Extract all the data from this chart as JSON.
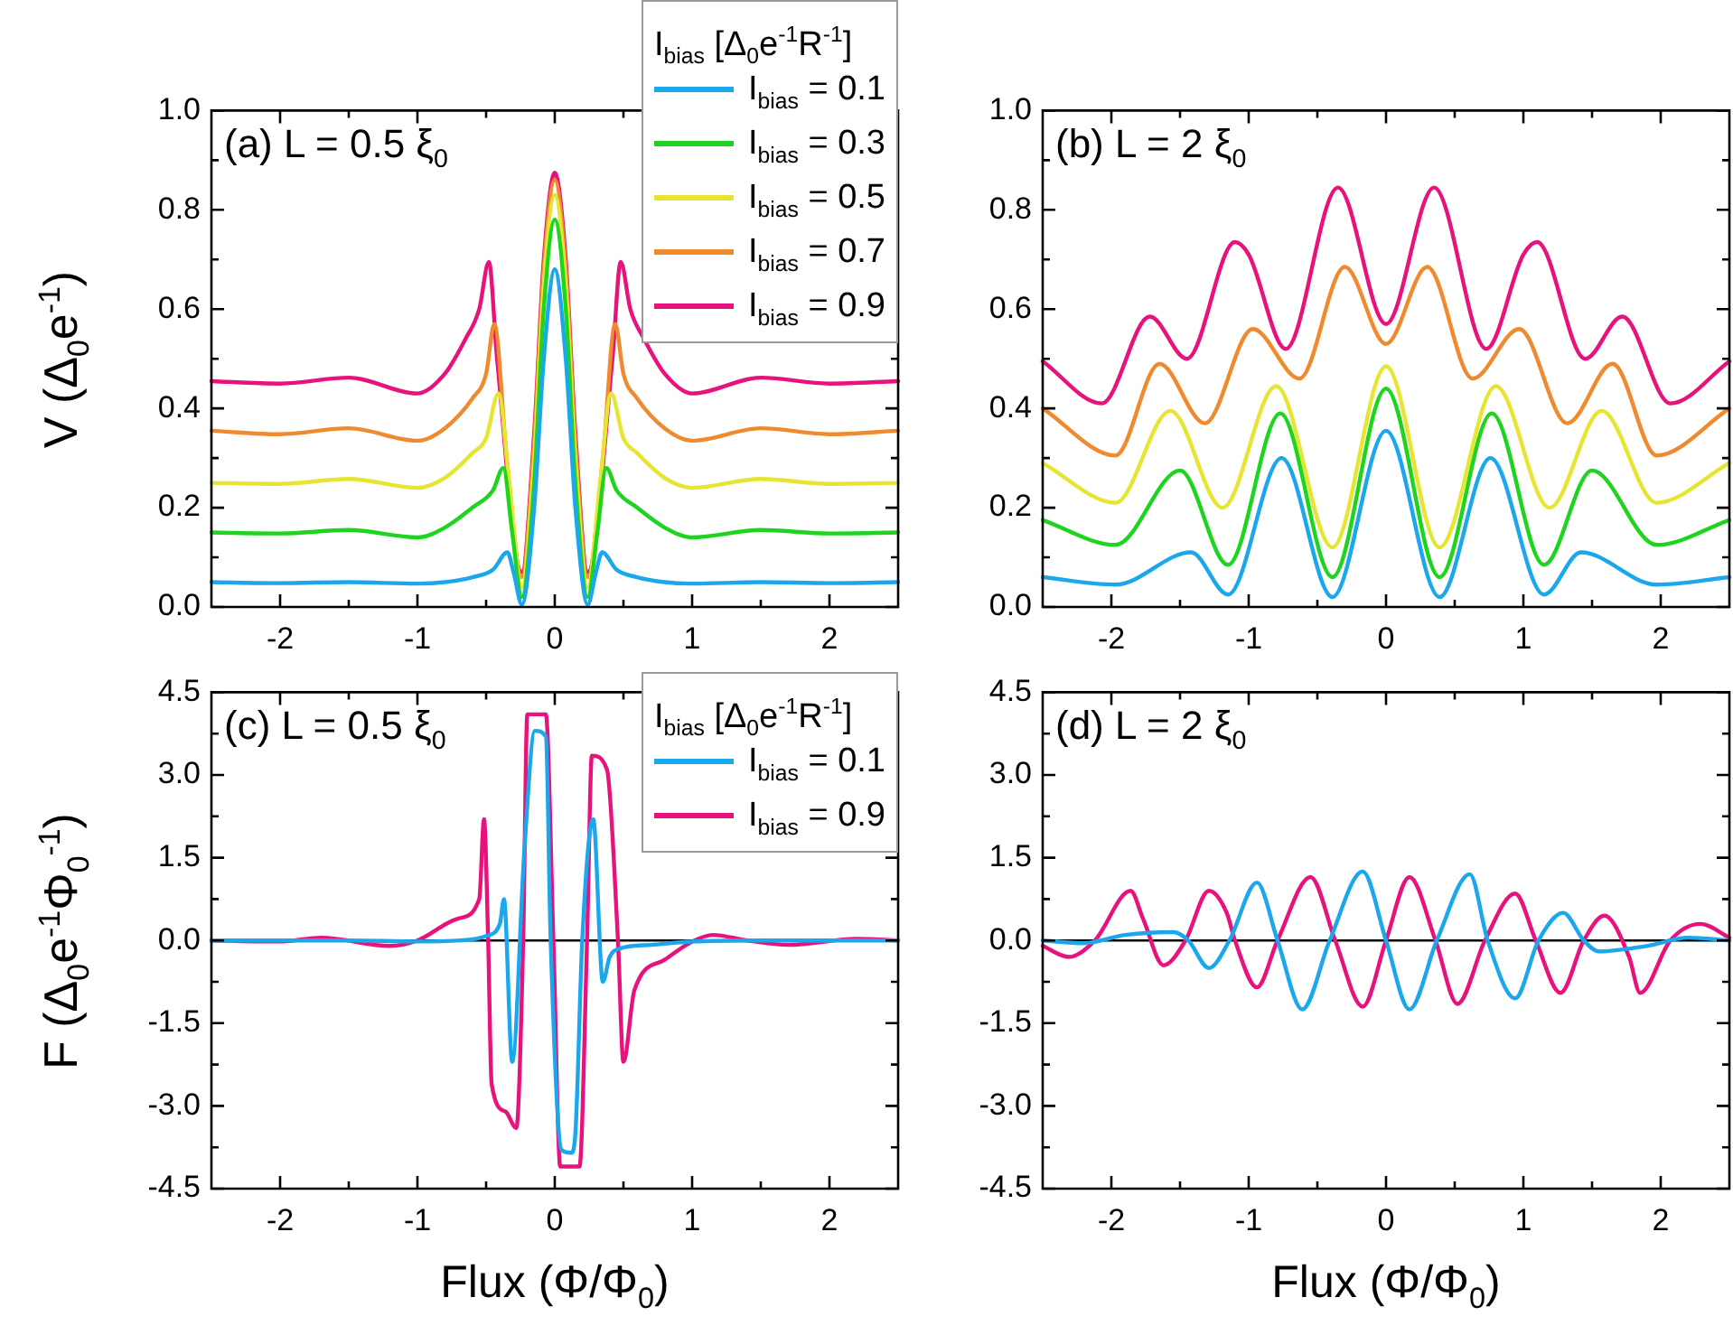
{
  "chart_data": [
    {
      "type": "line",
      "title": "(a) L = 0.5 ξ$_{0}$",
      "ylabel": "V (Δ$_{0}$e$^{-1}$)",
      "legend": "top right",
      "legend_title": "I$_{bias}$ [Δ$_{0}$e$^{-1}$R$^{-1}$]",
      "xlim": [
        -2.5,
        2.5
      ],
      "xticks": [
        -2,
        {
          "value": -1.5,
          "label": null
        },
        -1,
        {
          "value": -0.5,
          "label": null
        },
        0,
        {
          "value": 0.5,
          "label": null
        },
        1,
        {
          "value": 1.5,
          "label": null
        },
        2
      ],
      "ylim": [
        0,
        1
      ],
      "yticks": [
        {
          "value": 0,
          "label": "0.0"
        },
        {
          "value": 0.1,
          "label": null
        },
        {
          "value": 0.2,
          "label": "0.2"
        },
        {
          "value": 0.3,
          "label": null
        },
        {
          "value": 0.4,
          "label": "0.4"
        },
        {
          "value": 0.5,
          "label": null
        },
        {
          "value": 0.6,
          "label": "0.6"
        },
        {
          "value": 0.7,
          "label": null
        },
        {
          "value": 0.8,
          "label": "0.8"
        },
        {
          "value": 0.9,
          "label": null
        },
        {
          "value": 1,
          "label": "1.0"
        }
      ],
      "series": [
        {
          "name": "I$_{bias}$ = 0.1",
          "color": "#1aa7ec",
          "x": [
            -2.5,
            -2,
            -1.5,
            -1,
            -0.8,
            -0.6,
            -0.45,
            -0.345,
            -0.3,
            -0.24,
            -0.15,
            -0.08,
            0,
            0.08,
            0.15,
            0.24,
            0.3,
            0.345,
            0.45,
            0.6,
            0.8,
            1,
            1.5,
            2,
            2.5
          ],
          "values": [
            0.05,
            0.048,
            0.05,
            0.047,
            0.05,
            0.06,
            0.075,
            0.11,
            0.07,
            0.005,
            0.2,
            0.5,
            0.68,
            0.5,
            0.2,
            0.005,
            0.07,
            0.11,
            0.075,
            0.06,
            0.05,
            0.047,
            0.05,
            0.048,
            0.05
          ]
        },
        {
          "name": "I$_{bias}$ = 0.3",
          "color": "#1ed41e",
          "x": [
            -2.5,
            -2,
            -1.5,
            -1,
            -0.8,
            -0.6,
            -0.45,
            -0.375,
            -0.31,
            -0.24,
            -0.15,
            -0.08,
            0,
            0.08,
            0.15,
            0.24,
            0.31,
            0.375,
            0.45,
            0.6,
            0.8,
            1,
            1.5,
            2,
            2.5
          ],
          "values": [
            0.15,
            0.148,
            0.155,
            0.14,
            0.16,
            0.2,
            0.235,
            0.28,
            0.15,
            0.02,
            0.25,
            0.6,
            0.78,
            0.6,
            0.25,
            0.02,
            0.15,
            0.28,
            0.235,
            0.2,
            0.16,
            0.14,
            0.155,
            0.148,
            0.15
          ]
        },
        {
          "name": "I$_{bias}$ = 0.5",
          "color": "#e6e632",
          "x": [
            -2.5,
            -2,
            -1.5,
            -1,
            -0.8,
            -0.6,
            -0.5,
            -0.41,
            -0.33,
            -0.24,
            -0.15,
            -0.08,
            0,
            0.08,
            0.15,
            0.24,
            0.33,
            0.41,
            0.5,
            0.6,
            0.8,
            1,
            1.5,
            2,
            2.5
          ],
          "values": [
            0.25,
            0.248,
            0.258,
            0.24,
            0.26,
            0.31,
            0.34,
            0.43,
            0.25,
            0.04,
            0.3,
            0.65,
            0.83,
            0.65,
            0.3,
            0.04,
            0.25,
            0.43,
            0.34,
            0.31,
            0.26,
            0.24,
            0.258,
            0.248,
            0.25
          ]
        },
        {
          "name": "I$_{bias}$ = 0.7",
          "color": "#f08a2e",
          "x": [
            -2.5,
            -2,
            -1.5,
            -1,
            -0.8,
            -0.6,
            -0.5,
            -0.44,
            -0.35,
            -0.24,
            -0.15,
            -0.08,
            0,
            0.08,
            0.15,
            0.24,
            0.35,
            0.44,
            0.5,
            0.6,
            0.8,
            1,
            1.5,
            2,
            2.5
          ],
          "values": [
            0.355,
            0.348,
            0.36,
            0.335,
            0.36,
            0.42,
            0.47,
            0.57,
            0.3,
            0.06,
            0.33,
            0.68,
            0.86,
            0.68,
            0.33,
            0.06,
            0.3,
            0.57,
            0.47,
            0.42,
            0.36,
            0.335,
            0.36,
            0.348,
            0.355
          ]
        },
        {
          "name": "I$_{bias}$ = 0.9",
          "color": "#e8127c",
          "x": [
            -2.5,
            -2,
            -1.5,
            -1,
            -0.8,
            -0.65,
            -0.55,
            -0.48,
            -0.42,
            -0.24,
            -0.15,
            -0.08,
            0,
            0.08,
            0.15,
            0.24,
            0.42,
            0.48,
            0.55,
            0.65,
            0.8,
            1,
            1.5,
            2,
            2.5
          ],
          "values": [
            0.455,
            0.45,
            0.462,
            0.43,
            0.47,
            0.54,
            0.6,
            0.695,
            0.5,
            0.07,
            0.35,
            0.7,
            0.875,
            0.7,
            0.35,
            0.07,
            0.5,
            0.695,
            0.6,
            0.54,
            0.47,
            0.43,
            0.462,
            0.45,
            0.455
          ]
        }
      ]
    },
    {
      "type": "line",
      "title": "(b) L = 2 ξ$_{0}$",
      "xlim": [
        -2.5,
        2.5
      ],
      "xticks": [
        -2,
        {
          "value": -1.5,
          "label": null
        },
        -1,
        {
          "value": -0.5,
          "label": null
        },
        0,
        {
          "value": 0.5,
          "label": null
        },
        1,
        {
          "value": 1.5,
          "label": null
        },
        2
      ],
      "ylim": [
        0,
        1
      ],
      "yticks": [
        {
          "value": 0,
          "label": "0.0"
        },
        {
          "value": 0.1,
          "label": null
        },
        {
          "value": 0.2,
          "label": "0.2"
        },
        {
          "value": 0.3,
          "label": null
        },
        {
          "value": 0.4,
          "label": "0.4"
        },
        {
          "value": 0.5,
          "label": null
        },
        {
          "value": 0.6,
          "label": "0.6"
        },
        {
          "value": 0.7,
          "label": null
        },
        {
          "value": 0.8,
          "label": "0.8"
        },
        {
          "value": 0.9,
          "label": null
        },
        {
          "value": 1,
          "label": "1.0"
        }
      ],
      "series": [
        {
          "color": "#1aa7ec",
          "x": [
            -2.5,
            -1.97,
            -1.42,
            -1.15,
            -0.76,
            -0.39,
            0,
            0.39,
            0.76,
            1.15,
            1.42,
            1.97,
            2.5
          ],
          "values": [
            0.06,
            0.045,
            0.11,
            0.025,
            0.3,
            0.02,
            0.355,
            0.02,
            0.3,
            0.025,
            0.11,
            0.045,
            0.06
          ]
        },
        {
          "color": "#1ed41e",
          "x": [
            -2.5,
            -1.97,
            -1.5,
            -1.15,
            -0.77,
            -0.39,
            0,
            0.39,
            0.77,
            1.15,
            1.5,
            1.97,
            2.5
          ],
          "values": [
            0.175,
            0.125,
            0.275,
            0.085,
            0.39,
            0.06,
            0.44,
            0.06,
            0.39,
            0.085,
            0.275,
            0.125,
            0.175
          ]
        },
        {
          "color": "#e6e632",
          "x": [
            -2.5,
            -1.97,
            -1.57,
            -1.19,
            -0.8,
            -0.39,
            0,
            0.39,
            0.8,
            1.19,
            1.57,
            1.97,
            2.5
          ],
          "values": [
            0.29,
            0.21,
            0.395,
            0.2,
            0.445,
            0.12,
            0.485,
            0.12,
            0.445,
            0.2,
            0.395,
            0.21,
            0.29
          ]
        },
        {
          "color": "#f08a2e",
          "x": [
            -2.5,
            -1.97,
            -1.65,
            -1.32,
            -0.97,
            -0.63,
            -0.3,
            0,
            0.3,
            0.63,
            0.97,
            1.32,
            1.65,
            1.97,
            2.5
          ],
          "values": [
            0.4,
            0.305,
            0.49,
            0.37,
            0.56,
            0.46,
            0.685,
            0.53,
            0.685,
            0.46,
            0.56,
            0.37,
            0.49,
            0.305,
            0.4
          ]
        },
        {
          "color": "#e8127c",
          "x": [
            -2.5,
            -2.07,
            -1.72,
            -1.45,
            -1.1,
            -1,
            -0.73,
            -0.35,
            0,
            0.35,
            0.73,
            1,
            1.1,
            1.45,
            1.72,
            2.07,
            2.5
          ],
          "values": [
            0.495,
            0.41,
            0.585,
            0.5,
            0.735,
            0.71,
            0.52,
            0.845,
            0.57,
            0.845,
            0.52,
            0.71,
            0.735,
            0.5,
            0.585,
            0.41,
            0.495
          ]
        }
      ]
    },
    {
      "type": "line",
      "title": "(c) L = 0.5 ξ$_{0}$",
      "ylabel": "F (Δ$_{0}$e$^{-1}$Φ$_{0}$$^{-1}$)",
      "xlabel": "Flux (Φ/Φ$_{0}$)",
      "legend": "top right",
      "legend_title": "I$_{bias}$ [Δ$_{0}$e$^{-1}$R$^{-1}$]",
      "xlim": [
        -2.5,
        2.5
      ],
      "xticks": [
        -2,
        {
          "value": -1.5,
          "label": null
        },
        -1,
        {
          "value": -0.5,
          "label": null
        },
        0,
        {
          "value": 0.5,
          "label": null
        },
        1,
        {
          "value": 1.5,
          "label": null
        },
        2
      ],
      "ylim": [
        -4.5,
        4.5
      ],
      "yticks": [
        {
          "value": -4.5,
          "label": "-4.5"
        },
        {
          "value": -3.75,
          "label": null
        },
        {
          "value": -3,
          "label": "-3.0"
        },
        {
          "value": -2.25,
          "label": null
        },
        {
          "value": -1.5,
          "label": "-1.5"
        },
        {
          "value": -0.75,
          "label": null
        },
        {
          "value": 0,
          "label": "0.0"
        },
        {
          "value": 0.75,
          "label": null
        },
        {
          "value": 1.5,
          "label": "1.5"
        },
        {
          "value": 2.25,
          "label": null
        },
        {
          "value": 3,
          "label": "3.0"
        },
        {
          "value": 3.75,
          "label": null
        },
        {
          "value": 4.5,
          "label": "4.5"
        }
      ],
      "ref_lines": [
        {
          "axis": "y",
          "value": 0,
          "color": "#000000"
        }
      ],
      "series": [
        {
          "name": "I$_{bias}$ = 0.1",
          "color": "#1aa7ec",
          "x": [
            -2.5,
            -1.5,
            -1,
            -0.6,
            -0.5,
            -0.4,
            -0.37,
            -0.31,
            -0.22,
            -0.145,
            -0.065,
            -0.03,
            0.05,
            0.12,
            0.15,
            0.2,
            0.28,
            0.35,
            0.4,
            0.47,
            0.7,
            1,
            1.5,
            2,
            2.5
          ],
          "values": [
            0,
            0,
            -0.02,
            0.02,
            0.08,
            0.3,
            0.75,
            -2.2,
            1.7,
            3.8,
            3.7,
            0,
            -3.8,
            -3.85,
            -3.5,
            0,
            2.2,
            -0.75,
            -0.3,
            -0.15,
            -0.08,
            -0.02,
            0,
            0,
            0
          ]
        },
        {
          "name": "I$_{bias}$ = 0.9",
          "color": "#e8127c",
          "x": [
            -2.5,
            -2,
            -1.7,
            -1.2,
            -1,
            -0.7,
            -0.55,
            -0.515,
            -0.485,
            -0.46,
            -0.36,
            -0.28,
            -0.23,
            -0.2,
            -0.065,
            -0.01,
            0.04,
            0.18,
            0.235,
            0.27,
            0.38,
            0.46,
            0.5,
            0.58,
            0.8,
            1,
            1.15,
            1.4,
            1.7,
            2.2,
            2.5
          ],
          "values": [
            0,
            -0.02,
            0.05,
            -0.1,
            0,
            0.4,
            0.75,
            2.2,
            0,
            -2.6,
            -3.1,
            -3.4,
            0,
            4.1,
            4.1,
            0,
            -4.1,
            -4.1,
            0,
            3.35,
            3.1,
            0,
            -2.2,
            -0.9,
            -0.35,
            -0.02,
            0.1,
            0,
            -0.08,
            0.03,
            0
          ]
        }
      ]
    },
    {
      "type": "line",
      "title": "(d) L = 2 ξ$_{0}$",
      "xlabel": "Flux (Φ/Φ$_{0}$)",
      "xlim": [
        -2.5,
        2.5
      ],
      "xticks": [
        -2,
        {
          "value": -1.5,
          "label": null
        },
        -1,
        {
          "value": -0.5,
          "label": null
        },
        0,
        {
          "value": 0.5,
          "label": null
        },
        1,
        {
          "value": 1.5,
          "label": null
        },
        2
      ],
      "ylim": [
        -4.5,
        4.5
      ],
      "yticks": [
        {
          "value": -4.5,
          "label": "-4.5"
        },
        {
          "value": -3.75,
          "label": null
        },
        {
          "value": -3,
          "label": "-3.0"
        },
        {
          "value": -2.25,
          "label": null
        },
        {
          "value": -1.5,
          "label": "-1.5"
        },
        {
          "value": -0.75,
          "label": null
        },
        {
          "value": 0,
          "label": "0.0"
        },
        {
          "value": 0.75,
          "label": null
        },
        {
          "value": 1.5,
          "label": "1.5"
        },
        {
          "value": 2.25,
          "label": null
        },
        {
          "value": 3,
          "label": "3.0"
        },
        {
          "value": 3.75,
          "label": null
        },
        {
          "value": 4.5,
          "label": "4.5"
        }
      ],
      "ref_lines": [
        {
          "axis": "y",
          "value": 0,
          "color": "#000000"
        }
      ],
      "series": [
        {
          "color": "#1aa7ec",
          "x": [
            -2.5,
            -2.2,
            -1.9,
            -1.55,
            -1.44,
            -1.29,
            -1.14,
            -0.94,
            -0.79,
            -0.61,
            -0.41,
            -0.17,
            0,
            0.17,
            0.37,
            0.61,
            0.74,
            0.94,
            1.11,
            1.29,
            1.44,
            1.55,
            1.9,
            2.2,
            2.5
          ],
          "values": [
            0,
            -0.05,
            0.1,
            0.15,
            0,
            -0.5,
            0,
            1.05,
            0,
            -1.25,
            0,
            1.25,
            0,
            -1.25,
            0,
            1.2,
            0,
            -1.05,
            0,
            0.5,
            0,
            -0.2,
            -0.1,
            0.05,
            0
          ]
        },
        {
          "color": "#e8127c",
          "x": [
            -2.5,
            -2.31,
            -2.12,
            -1.86,
            -1.77,
            -1.62,
            -1.46,
            -1.29,
            -1.16,
            -1.1,
            -0.94,
            -0.79,
            -0.55,
            -0.37,
            -0.17,
            0,
            0.17,
            0.36,
            0.52,
            0.72,
            0.94,
            1.09,
            1.27,
            1.44,
            1.59,
            1.77,
            1.85,
            2.07,
            2.29,
            2.5
          ],
          "values": [
            -0.1,
            -0.3,
            0,
            0.9,
            0.4,
            -0.45,
            0,
            0.9,
            0.5,
            0,
            -0.85,
            0,
            1.15,
            0,
            -1.2,
            0,
            1.15,
            0,
            -1.15,
            0,
            0.85,
            0,
            -0.95,
            0,
            0.45,
            -0.3,
            -0.95,
            0,
            0.3,
            0.05
          ]
        }
      ]
    }
  ]
}
